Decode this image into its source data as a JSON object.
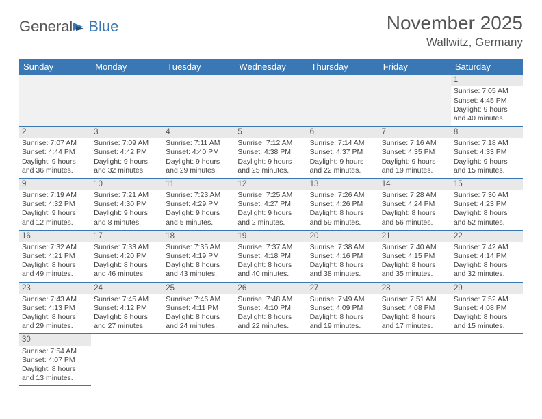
{
  "logo": {
    "general": "General",
    "blue": "Blue"
  },
  "title": "November 2025",
  "location": "Wallwitz, Germany",
  "colors": {
    "headerBg": "#3a78b5",
    "headerFg": "#ffffff",
    "dayBarBg": "#e9e9e9",
    "rule": "#3a78b5",
    "pageBg": "#ffffff"
  },
  "dayNames": [
    "Sunday",
    "Monday",
    "Tuesday",
    "Wednesday",
    "Thursday",
    "Friday",
    "Saturday"
  ],
  "weeks": [
    [
      null,
      null,
      null,
      null,
      null,
      null,
      {
        "n": "1",
        "sr": "Sunrise: 7:05 AM",
        "ss": "Sunset: 4:45 PM",
        "dl": "Daylight: 9 hours and 40 minutes."
      }
    ],
    [
      {
        "n": "2",
        "sr": "Sunrise: 7:07 AM",
        "ss": "Sunset: 4:44 PM",
        "dl": "Daylight: 9 hours and 36 minutes."
      },
      {
        "n": "3",
        "sr": "Sunrise: 7:09 AM",
        "ss": "Sunset: 4:42 PM",
        "dl": "Daylight: 9 hours and 32 minutes."
      },
      {
        "n": "4",
        "sr": "Sunrise: 7:11 AM",
        "ss": "Sunset: 4:40 PM",
        "dl": "Daylight: 9 hours and 29 minutes."
      },
      {
        "n": "5",
        "sr": "Sunrise: 7:12 AM",
        "ss": "Sunset: 4:38 PM",
        "dl": "Daylight: 9 hours and 25 minutes."
      },
      {
        "n": "6",
        "sr": "Sunrise: 7:14 AM",
        "ss": "Sunset: 4:37 PM",
        "dl": "Daylight: 9 hours and 22 minutes."
      },
      {
        "n": "7",
        "sr": "Sunrise: 7:16 AM",
        "ss": "Sunset: 4:35 PM",
        "dl": "Daylight: 9 hours and 19 minutes."
      },
      {
        "n": "8",
        "sr": "Sunrise: 7:18 AM",
        "ss": "Sunset: 4:33 PM",
        "dl": "Daylight: 9 hours and 15 minutes."
      }
    ],
    [
      {
        "n": "9",
        "sr": "Sunrise: 7:19 AM",
        "ss": "Sunset: 4:32 PM",
        "dl": "Daylight: 9 hours and 12 minutes."
      },
      {
        "n": "10",
        "sr": "Sunrise: 7:21 AM",
        "ss": "Sunset: 4:30 PM",
        "dl": "Daylight: 9 hours and 8 minutes."
      },
      {
        "n": "11",
        "sr": "Sunrise: 7:23 AM",
        "ss": "Sunset: 4:29 PM",
        "dl": "Daylight: 9 hours and 5 minutes."
      },
      {
        "n": "12",
        "sr": "Sunrise: 7:25 AM",
        "ss": "Sunset: 4:27 PM",
        "dl": "Daylight: 9 hours and 2 minutes."
      },
      {
        "n": "13",
        "sr": "Sunrise: 7:26 AM",
        "ss": "Sunset: 4:26 PM",
        "dl": "Daylight: 8 hours and 59 minutes."
      },
      {
        "n": "14",
        "sr": "Sunrise: 7:28 AM",
        "ss": "Sunset: 4:24 PM",
        "dl": "Daylight: 8 hours and 56 minutes."
      },
      {
        "n": "15",
        "sr": "Sunrise: 7:30 AM",
        "ss": "Sunset: 4:23 PM",
        "dl": "Daylight: 8 hours and 52 minutes."
      }
    ],
    [
      {
        "n": "16",
        "sr": "Sunrise: 7:32 AM",
        "ss": "Sunset: 4:21 PM",
        "dl": "Daylight: 8 hours and 49 minutes."
      },
      {
        "n": "17",
        "sr": "Sunrise: 7:33 AM",
        "ss": "Sunset: 4:20 PM",
        "dl": "Daylight: 8 hours and 46 minutes."
      },
      {
        "n": "18",
        "sr": "Sunrise: 7:35 AM",
        "ss": "Sunset: 4:19 PM",
        "dl": "Daylight: 8 hours and 43 minutes."
      },
      {
        "n": "19",
        "sr": "Sunrise: 7:37 AM",
        "ss": "Sunset: 4:18 PM",
        "dl": "Daylight: 8 hours and 40 minutes."
      },
      {
        "n": "20",
        "sr": "Sunrise: 7:38 AM",
        "ss": "Sunset: 4:16 PM",
        "dl": "Daylight: 8 hours and 38 minutes."
      },
      {
        "n": "21",
        "sr": "Sunrise: 7:40 AM",
        "ss": "Sunset: 4:15 PM",
        "dl": "Daylight: 8 hours and 35 minutes."
      },
      {
        "n": "22",
        "sr": "Sunrise: 7:42 AM",
        "ss": "Sunset: 4:14 PM",
        "dl": "Daylight: 8 hours and 32 minutes."
      }
    ],
    [
      {
        "n": "23",
        "sr": "Sunrise: 7:43 AM",
        "ss": "Sunset: 4:13 PM",
        "dl": "Daylight: 8 hours and 29 minutes."
      },
      {
        "n": "24",
        "sr": "Sunrise: 7:45 AM",
        "ss": "Sunset: 4:12 PM",
        "dl": "Daylight: 8 hours and 27 minutes."
      },
      {
        "n": "25",
        "sr": "Sunrise: 7:46 AM",
        "ss": "Sunset: 4:11 PM",
        "dl": "Daylight: 8 hours and 24 minutes."
      },
      {
        "n": "26",
        "sr": "Sunrise: 7:48 AM",
        "ss": "Sunset: 4:10 PM",
        "dl": "Daylight: 8 hours and 22 minutes."
      },
      {
        "n": "27",
        "sr": "Sunrise: 7:49 AM",
        "ss": "Sunset: 4:09 PM",
        "dl": "Daylight: 8 hours and 19 minutes."
      },
      {
        "n": "28",
        "sr": "Sunrise: 7:51 AM",
        "ss": "Sunset: 4:08 PM",
        "dl": "Daylight: 8 hours and 17 minutes."
      },
      {
        "n": "29",
        "sr": "Sunrise: 7:52 AM",
        "ss": "Sunset: 4:08 PM",
        "dl": "Daylight: 8 hours and 15 minutes."
      }
    ],
    [
      {
        "n": "30",
        "sr": "Sunrise: 7:54 AM",
        "ss": "Sunset: 4:07 PM",
        "dl": "Daylight: 8 hours and 13 minutes."
      },
      null,
      null,
      null,
      null,
      null,
      null
    ]
  ]
}
